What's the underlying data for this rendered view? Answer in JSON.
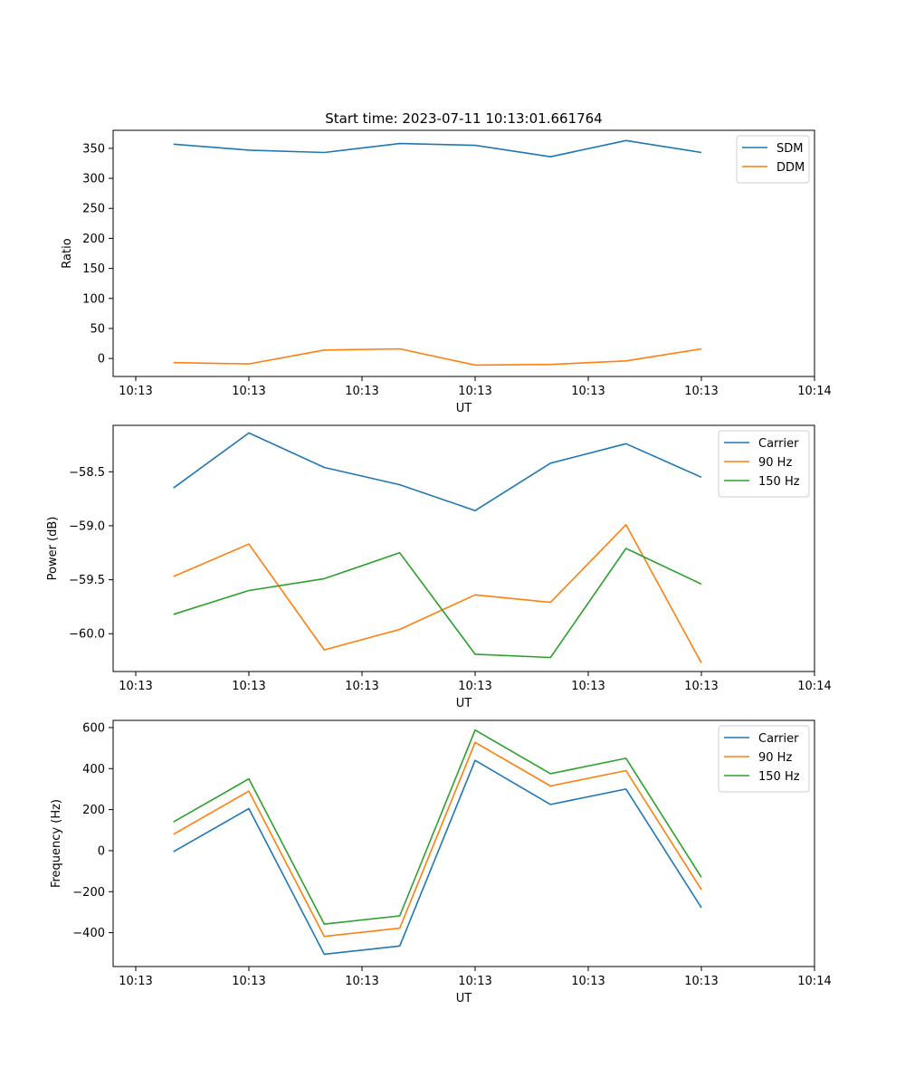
{
  "figure_title": "Start time: 2023-07-11 10:13:01.661764",
  "colors": {
    "blue": "#1f77b4",
    "orange": "#ff7f0e",
    "green": "#2ca02c"
  },
  "chart_data": [
    {
      "type": "line",
      "title": "Start time: 2023-07-11 10:13:01.661764",
      "xlabel": "UT",
      "ylabel": "Ratio",
      "x": [
        1,
        2,
        3,
        4,
        5,
        6,
        7,
        8
      ],
      "xlim": [
        0.2,
        9.5
      ],
      "x_ticks": [
        0.5,
        2,
        3.5,
        5,
        6.5,
        8,
        9.5
      ],
      "x_tick_labels": [
        "10:13",
        "10:13",
        "10:13",
        "10:13",
        "10:13",
        "10:13",
        "10:14"
      ],
      "ylim": [
        -30,
        380
      ],
      "y_ticks": [
        0,
        50,
        100,
        150,
        200,
        250,
        300,
        350
      ],
      "y_tick_labels": [
        "0",
        "50",
        "100",
        "150",
        "200",
        "250",
        "300",
        "350"
      ],
      "legend_position": "top-right",
      "series": [
        {
          "name": "SDM",
          "color": "#1f77b4",
          "values": [
            357,
            347,
            343,
            358,
            355,
            336,
            363,
            343
          ]
        },
        {
          "name": "DDM",
          "color": "#ff7f0e",
          "values": [
            -7,
            -9,
            14,
            16,
            -11,
            -10,
            -4,
            16
          ]
        }
      ]
    },
    {
      "type": "line",
      "title": "",
      "xlabel": "UT",
      "ylabel": "Power (dB)",
      "x": [
        1,
        2,
        3,
        4,
        5,
        6,
        7,
        8
      ],
      "xlim": [
        0.2,
        9.5
      ],
      "x_ticks": [
        0.5,
        2,
        3.5,
        5,
        6.5,
        8,
        9.5
      ],
      "x_tick_labels": [
        "10:13",
        "10:13",
        "10:13",
        "10:13",
        "10:13",
        "10:13",
        "10:14"
      ],
      "ylim": [
        -60.35,
        -58.07
      ],
      "y_ticks": [
        -60.0,
        -59.5,
        -59.0,
        -58.5
      ],
      "y_tick_labels": [
        "−60.0",
        "−59.5",
        "−59.0",
        "−58.5"
      ],
      "legend_position": "top-right",
      "series": [
        {
          "name": "Carrier",
          "color": "#1f77b4",
          "values": [
            -58.65,
            -58.14,
            -58.46,
            -58.62,
            -58.86,
            -58.42,
            -58.24,
            -58.55
          ]
        },
        {
          "name": "90 Hz",
          "color": "#ff7f0e",
          "values": [
            -59.47,
            -59.17,
            -60.15,
            -59.96,
            -59.64,
            -59.71,
            -58.99,
            -60.27
          ]
        },
        {
          "name": "150 Hz",
          "color": "#2ca02c",
          "values": [
            -59.82,
            -59.6,
            -59.49,
            -59.25,
            -60.19,
            -60.22,
            -59.21,
            -59.54
          ]
        }
      ]
    },
    {
      "type": "line",
      "title": "",
      "xlabel": "UT",
      "ylabel": "Frequency (Hz)",
      "x": [
        1,
        2,
        3,
        4,
        5,
        6,
        7,
        8
      ],
      "xlim": [
        0.2,
        9.5
      ],
      "x_ticks": [
        0.5,
        2,
        3.5,
        5,
        6.5,
        8,
        9.5
      ],
      "x_tick_labels": [
        "10:13",
        "10:13",
        "10:13",
        "10:13",
        "10:13",
        "10:13",
        "10:14"
      ],
      "ylim": [
        -565,
        635
      ],
      "y_ticks": [
        -400,
        -200,
        0,
        200,
        400,
        600
      ],
      "y_tick_labels": [
        "−400",
        "−200",
        "0",
        "200",
        "400",
        "600"
      ],
      "legend_position": "top-right",
      "series": [
        {
          "name": "Carrier",
          "color": "#1f77b4",
          "values": [
            -5,
            205,
            -505,
            -465,
            440,
            225,
            300,
            -278
          ]
        },
        {
          "name": "90 Hz",
          "color": "#ff7f0e",
          "values": [
            80,
            290,
            -418,
            -378,
            528,
            315,
            390,
            -190
          ]
        },
        {
          "name": "150 Hz",
          "color": "#2ca02c",
          "values": [
            140,
            350,
            -358,
            -318,
            588,
            375,
            450,
            -130
          ]
        }
      ]
    }
  ]
}
